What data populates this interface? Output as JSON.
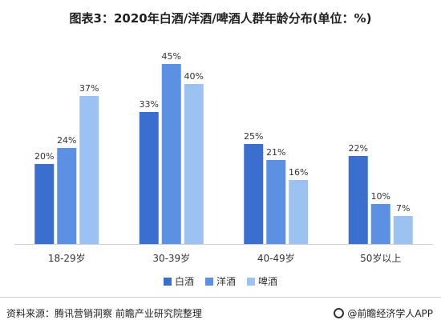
{
  "title": "图表3：2020年白酒/洋酒/啤酒人群年龄分布(单位：%)",
  "chart_data": {
    "type": "bar",
    "categories": [
      "18-29岁",
      "30-39岁",
      "40-49岁",
      "50岁以上"
    ],
    "series": [
      {
        "name": "白酒",
        "values": [
          20,
          33,
          25,
          22
        ],
        "labels": [
          "20%",
          "33%",
          "25%",
          "22%"
        ],
        "color": "#3a6fcf"
      },
      {
        "name": "洋酒",
        "values": [
          24,
          45,
          21,
          10
        ],
        "labels": [
          "24%",
          "45%",
          "21%",
          "10%"
        ],
        "color": "#5b90e3"
      },
      {
        "name": "啤酒",
        "values": [
          37,
          40,
          16,
          7
        ],
        "labels": [
          "37%",
          "40%",
          "16%",
          "7%"
        ],
        "color": "#9cc2f2"
      }
    ],
    "ylim": [
      0,
      50
    ],
    "grid": false,
    "legend_position": "bottom"
  },
  "footer": {
    "source": "资料来源：腾讯营销洞察 前瞻产业研究院整理",
    "brand": "@前瞻经济学人APP"
  }
}
